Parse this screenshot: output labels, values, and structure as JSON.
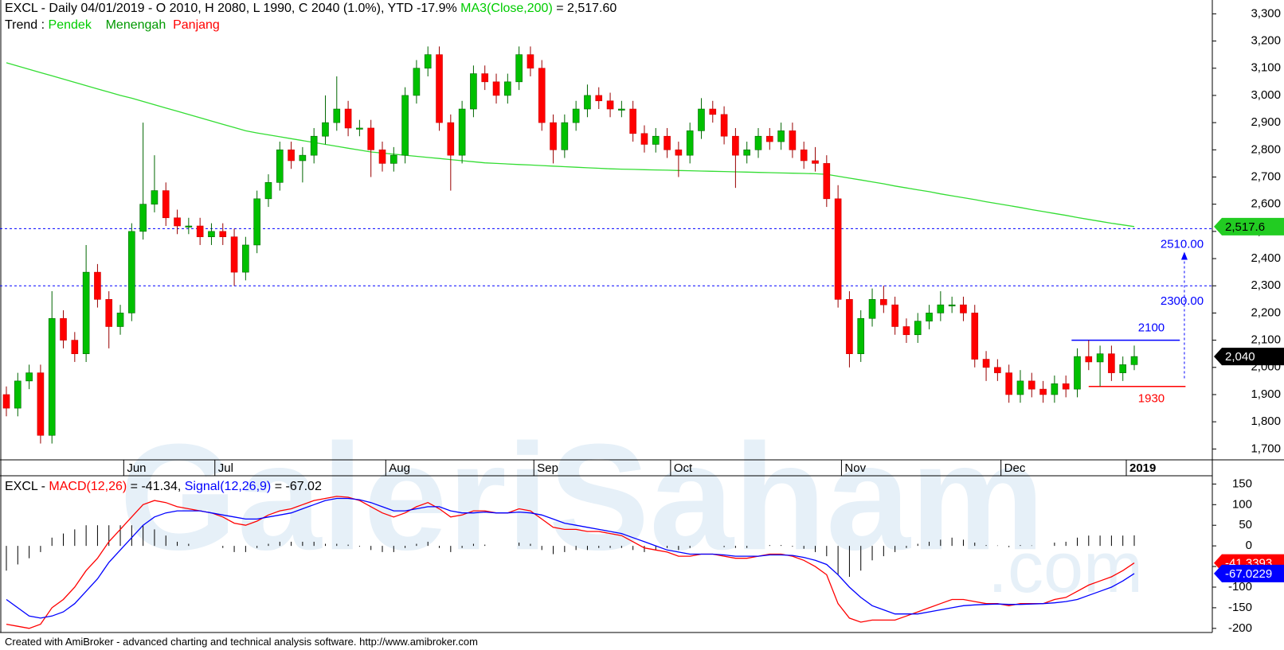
{
  "chart_data": [
    {
      "type": "candlestick",
      "title": [
        "EXCL - Daily 04/01/2019 - O 2010, H 2080, L 1990, C 2040 (1.0%), YTD -17.9% ",
        "MA3(Close,200)",
        " = 2,517.60"
      ],
      "trend": [
        "Trend : ",
        "Pendek",
        "Menengah",
        "Panjang"
      ],
      "watermark": [
        "GaleriSaham",
        ".com"
      ],
      "footer": "Created with AmiBroker - advanced charting and technical analysis software. http://www.amibroker.com",
      "categories": [
        null,
        null,
        null,
        null,
        null,
        null,
        null,
        null,
        null,
        null,
        null,
        "Jun",
        null,
        null,
        null,
        null,
        null,
        null,
        null,
        "Jul",
        null,
        null,
        null,
        null,
        null,
        null,
        null,
        null,
        null,
        null,
        null,
        null,
        null,
        null,
        "Aug",
        null,
        null,
        null,
        null,
        null,
        null,
        null,
        null,
        null,
        null,
        null,
        null,
        "Sep",
        null,
        null,
        null,
        null,
        null,
        null,
        null,
        null,
        null,
        null,
        null,
        "Oct",
        null,
        null,
        null,
        null,
        null,
        null,
        null,
        null,
        null,
        null,
        null,
        null,
        null,
        null,
        "Nov",
        null,
        null,
        null,
        null,
        null,
        null,
        null,
        null,
        null,
        null,
        null,
        null,
        null,
        "Dec",
        null,
        null,
        null,
        null,
        null,
        null,
        null,
        null,
        null,
        null,
        "2019"
      ],
      "open": [
        1900,
        1850,
        1950,
        1980,
        1750,
        2180,
        2100,
        2050,
        2350,
        2250,
        2150,
        2200,
        2500,
        2600,
        2650,
        2550,
        2520,
        2520,
        2480,
        2500,
        2480,
        2350,
        2450,
        2620,
        2680,
        2800,
        2760,
        2780,
        2850,
        2900,
        2950,
        2880,
        2880,
        2800,
        2750,
        2780,
        3000,
        3100,
        3150,
        2900,
        2780,
        2950,
        3080,
        3050,
        3000,
        3050,
        3150,
        3100,
        2900,
        2800,
        2900,
        2950,
        3000,
        2980,
        2950,
        2950,
        2860,
        2820,
        2850,
        2800,
        2780,
        2870,
        2950,
        2930,
        2850,
        2780,
        2800,
        2850,
        2830,
        2870,
        2800,
        2760,
        2750,
        2620,
        2250,
        2050,
        2180,
        2250,
        2230,
        2150,
        2120,
        2170,
        2200,
        2230,
        2230,
        2200,
        2030,
        2000,
        1980,
        1900,
        1950,
        1920,
        1900,
        1940,
        1920,
        2040,
        2020,
        2050,
        1980,
        2010
      ],
      "high": [
        1930,
        1980,
        2010,
        2010,
        2280,
        2210,
        2130,
        2450,
        2380,
        2280,
        2230,
        2530,
        2900,
        2780,
        2680,
        2580,
        2550,
        2550,
        2530,
        2530,
        2510,
        2480,
        2650,
        2710,
        2830,
        2830,
        2810,
        2880,
        3000,
        3070,
        2980,
        2910,
        2910,
        2830,
        2810,
        3030,
        3130,
        3180,
        3180,
        2930,
        2980,
        3110,
        3110,
        3080,
        3080,
        3180,
        3180,
        3130,
        2930,
        2930,
        2980,
        3040,
        3030,
        3010,
        2980,
        2980,
        2890,
        2880,
        2880,
        2830,
        2900,
        2990,
        2980,
        2960,
        2880,
        2830,
        2880,
        2880,
        2900,
        2900,
        2830,
        2810,
        2780,
        2670,
        2280,
        2210,
        2290,
        2300,
        2260,
        2180,
        2200,
        2230,
        2280,
        2260,
        2260,
        2230,
        2060,
        2030,
        2010,
        1990,
        1980,
        1950,
        1970,
        1970,
        2070,
        2100,
        2080,
        2080,
        2040,
        2080
      ],
      "low": [
        1820,
        1820,
        1920,
        1720,
        1720,
        2070,
        2020,
        2020,
        2220,
        2070,
        2120,
        2170,
        2470,
        2570,
        2520,
        2490,
        2490,
        2450,
        2450,
        2450,
        2300,
        2320,
        2420,
        2590,
        2650,
        2730,
        2680,
        2750,
        2820,
        2870,
        2850,
        2850,
        2700,
        2720,
        2720,
        2750,
        2970,
        3070,
        2870,
        2650,
        2750,
        2920,
        3020,
        2970,
        2970,
        3020,
        3070,
        2870,
        2750,
        2770,
        2870,
        2920,
        2950,
        2920,
        2920,
        2830,
        2790,
        2790,
        2770,
        2700,
        2750,
        2840,
        2900,
        2820,
        2660,
        2750,
        2770,
        2800,
        2800,
        2770,
        2730,
        2720,
        2590,
        2220,
        2000,
        2020,
        2150,
        2200,
        2120,
        2090,
        2090,
        2140,
        2170,
        2200,
        2170,
        2000,
        1950,
        1950,
        1870,
        1870,
        1890,
        1870,
        1870,
        1890,
        1890,
        1990,
        1930,
        1950,
        1950,
        1990
      ],
      "close": [
        1850,
        1950,
        1980,
        1750,
        2180,
        2100,
        2050,
        2350,
        2250,
        2150,
        2200,
        2500,
        2600,
        2650,
        2550,
        2520,
        2520,
        2480,
        2500,
        2480,
        2350,
        2450,
        2620,
        2680,
        2800,
        2760,
        2780,
        2850,
        2900,
        2950,
        2880,
        2880,
        2800,
        2750,
        2780,
        3000,
        3100,
        3150,
        2900,
        2780,
        2950,
        3080,
        3050,
        3000,
        3050,
        3150,
        3100,
        2900,
        2800,
        2900,
        2950,
        3000,
        2980,
        2950,
        2950,
        2860,
        2820,
        2850,
        2800,
        2780,
        2870,
        2950,
        2930,
        2850,
        2780,
        2800,
        2850,
        2830,
        2870,
        2800,
        2760,
        2750,
        2620,
        2250,
        2050,
        2180,
        2250,
        2230,
        2150,
        2120,
        2170,
        2200,
        2230,
        2230,
        2200,
        2030,
        2000,
        1980,
        1900,
        1950,
        1920,
        1900,
        1940,
        1920,
        2040,
        2020,
        2050,
        1980,
        2010,
        2040
      ],
      "up_color": "#00c000",
      "down_color": "#ff0000",
      "series": [
        {
          "name": "MA3(Close,200)",
          "color": "#33dd33",
          "values": [
            3120,
            3108,
            3096,
            3084,
            3072,
            3060,
            3048,
            3036,
            3024,
            3012,
            3000,
            2990,
            2978,
            2966,
            2954,
            2942,
            2930,
            2918,
            2906,
            2894,
            2882,
            2870,
            2862,
            2855,
            2848,
            2841,
            2834,
            2827,
            2820,
            2813,
            2806,
            2799,
            2792,
            2788,
            2784,
            2780,
            2776,
            2772,
            2768,
            2764,
            2760,
            2756,
            2752,
            2750,
            2748,
            2746,
            2744,
            2742,
            2740,
            2738,
            2736,
            2734,
            2732,
            2730,
            2729,
            2728,
            2727,
            2726,
            2725,
            2724,
            2723,
            2722,
            2721,
            2720,
            2719,
            2718,
            2717,
            2716,
            2715,
            2714,
            2713,
            2712,
            2710,
            2703,
            2696,
            2689,
            2682,
            2675,
            2667,
            2660,
            2653,
            2646,
            2638,
            2631,
            2624,
            2617,
            2609,
            2602,
            2595,
            2588,
            2580,
            2573,
            2566,
            2559,
            2551,
            2544,
            2537,
            2530,
            2524,
            2517.6
          ]
        }
      ],
      "levels": [
        {
          "value": 2510,
          "label": "2510.00",
          "color": "#0000ff",
          "style": "dashed"
        },
        {
          "value": 2300,
          "label": "2300.00",
          "color": "#0000ff",
          "style": "dashed"
        },
        {
          "value": 2100,
          "label": "2100",
          "color": "#0000ff",
          "style": "solid"
        },
        {
          "value": 1930,
          "label": "1930",
          "color": "#ff0000",
          "style": "solid"
        }
      ],
      "tags": [
        {
          "value": 2517.6,
          "label": "2,517.6",
          "color": "#22cc22"
        },
        {
          "value": 2040,
          "label": "2,040",
          "color": "#000000"
        }
      ],
      "ylim": [
        1660,
        3345
      ],
      "yticks": [
        {
          "value": 1700,
          "label": "1,700"
        },
        {
          "value": 1800,
          "label": "1,800"
        },
        {
          "value": 1900,
          "label": "1,900"
        },
        {
          "value": 2000,
          "label": "2,000"
        },
        {
          "value": 2100,
          "label": "2,100"
        },
        {
          "value": 2200,
          "label": "2,200"
        },
        {
          "value": 2300,
          "label": "2,300"
        },
        {
          "value": 2400,
          "label": "2,400"
        },
        {
          "value": 2500,
          "label": "2,500"
        },
        {
          "value": 2600,
          "label": "2,600"
        },
        {
          "value": 2700,
          "label": "2,700"
        },
        {
          "value": 2800,
          "label": "2,800"
        },
        {
          "value": 2900,
          "label": "2,900"
        },
        {
          "value": 3000,
          "label": "3,000"
        },
        {
          "value": 3100,
          "label": "3,100"
        },
        {
          "value": 3200,
          "label": "3,200"
        },
        {
          "value": 3300,
          "label": "3,300"
        }
      ]
    },
    {
      "type": "macd",
      "title": [
        "EXCL - ",
        "MACD(12,26)",
        " = -41.34, ",
        "Signal(12,26,9)",
        " = -67.02"
      ],
      "series": [
        {
          "name": "MACD(12,26)",
          "color": "#ff0000",
          "values": [
            -190,
            -195,
            -200,
            -190,
            -150,
            -130,
            -100,
            -60,
            -30,
            10,
            40,
            70,
            100,
            110,
            105,
            95,
            90,
            85,
            80,
            70,
            55,
            50,
            60,
            75,
            85,
            90,
            100,
            110,
            115,
            120,
            118,
            110,
            95,
            80,
            70,
            80,
            95,
            105,
            90,
            70,
            75,
            85,
            85,
            80,
            80,
            90,
            85,
            65,
            45,
            40,
            40,
            35,
            35,
            30,
            25,
            10,
            -5,
            -10,
            -15,
            -25,
            -25,
            -20,
            -20,
            -25,
            -30,
            -30,
            -25,
            -20,
            -20,
            -25,
            -35,
            -50,
            -70,
            -140,
            -175,
            -185,
            -180,
            -180,
            -180,
            -170,
            -160,
            -150,
            -140,
            -130,
            -130,
            -135,
            -140,
            -140,
            -145,
            -140,
            -140,
            -140,
            -130,
            -125,
            -110,
            -95,
            -85,
            -75,
            -60,
            -41.34
          ]
        },
        {
          "name": "Signal(12,26,9)",
          "color": "#0000ff",
          "values": [
            -130,
            -150,
            -170,
            -175,
            -170,
            -160,
            -140,
            -110,
            -80,
            -40,
            -10,
            20,
            50,
            70,
            80,
            85,
            85,
            85,
            80,
            75,
            70,
            65,
            65,
            70,
            75,
            80,
            90,
            100,
            110,
            115,
            115,
            112,
            105,
            95,
            85,
            85,
            90,
            95,
            95,
            85,
            80,
            80,
            82,
            80,
            80,
            82,
            80,
            75,
            65,
            55,
            50,
            45,
            40,
            35,
            30,
            20,
            10,
            0,
            -10,
            -15,
            -20,
            -20,
            -20,
            -22,
            -25,
            -25,
            -25,
            -22,
            -22,
            -23,
            -28,
            -35,
            -45,
            -70,
            -100,
            -125,
            -145,
            -155,
            -165,
            -165,
            -165,
            -160,
            -155,
            -150,
            -145,
            -143,
            -142,
            -141,
            -142,
            -142,
            -141,
            -140,
            -138,
            -135,
            -130,
            -120,
            -110,
            -100,
            -85,
            -67.02
          ]
        }
      ],
      "histogram": [
        -60,
        -45,
        -30,
        -15,
        20,
        30,
        40,
        50,
        50,
        50,
        50,
        50,
        50,
        40,
        25,
        10,
        5,
        0,
        0,
        -5,
        -15,
        -15,
        -5,
        5,
        10,
        10,
        10,
        10,
        5,
        5,
        3,
        -2,
        -10,
        -15,
        -15,
        -5,
        5,
        10,
        -5,
        -15,
        -5,
        5,
        3,
        0,
        0,
        8,
        5,
        -10,
        -20,
        -15,
        -10,
        -10,
        -5,
        -5,
        -5,
        -10,
        -15,
        -10,
        -5,
        -10,
        -5,
        0,
        0,
        -3,
        -5,
        -5,
        0,
        2,
        2,
        -2,
        -7,
        -15,
        -25,
        -70,
        -75,
        -60,
        -35,
        -25,
        -15,
        -5,
        5,
        10,
        15,
        20,
        15,
        8,
        2,
        1,
        -3,
        2,
        1,
        0,
        8,
        10,
        20,
        25,
        25,
        25,
        25,
        25.68
      ],
      "tags": [
        {
          "value": -41.3393,
          "label": "-41.3393",
          "color": "#ff0000"
        },
        {
          "value": -67.0229,
          "label": "-67.0229",
          "color": "#0000ff"
        }
      ],
      "ylim": [
        -210,
        170
      ],
      "yticks": [
        -200,
        -150,
        -100,
        -50,
        0,
        50,
        100,
        150
      ]
    }
  ]
}
